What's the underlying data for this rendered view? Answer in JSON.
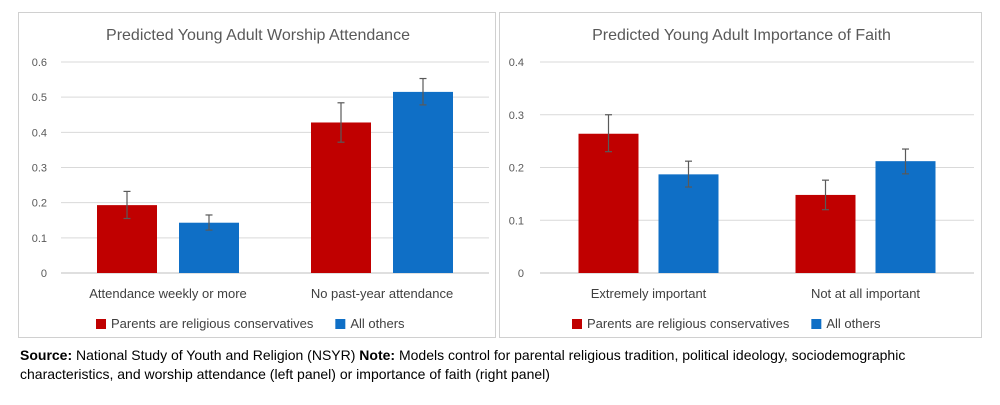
{
  "chart_data": [
    {
      "type": "bar",
      "title": "Predicted Young Adult Worship Attendance",
      "categories": [
        "Attendance weekly or more",
        "No past-year attendance"
      ],
      "series": [
        {
          "name": "Parents are religious conservatives",
          "color": "#c00000",
          "values": [
            0.193,
            0.428
          ],
          "error": [
            [
              0.155,
              0.232
            ],
            [
              0.372,
              0.484
            ]
          ]
        },
        {
          "name": "All others",
          "color": "#0f6fc6",
          "values": [
            0.143,
            0.515
          ],
          "error": [
            [
              0.122,
              0.165
            ],
            [
              0.478,
              0.553
            ]
          ]
        }
      ],
      "ylim": [
        0,
        0.6
      ],
      "yticks": [
        "0",
        "0.1",
        "0.2",
        "0.3",
        "0.4",
        "0.5",
        "0.6"
      ],
      "legend": "bottom",
      "grid": true
    },
    {
      "type": "bar",
      "title": "Predicted Young Adult Importance of Faith",
      "categories": [
        "Extremely important",
        "Not at all important"
      ],
      "series": [
        {
          "name": "Parents are religious conservatives",
          "color": "#c00000",
          "values": [
            0.264,
            0.148
          ],
          "error": [
            [
              0.23,
              0.3
            ],
            [
              0.12,
              0.176
            ]
          ]
        },
        {
          "name": "All others",
          "color": "#0f6fc6",
          "values": [
            0.187,
            0.212
          ],
          "error": [
            [
              0.163,
              0.212
            ],
            [
              0.188,
              0.235
            ]
          ]
        }
      ],
      "ylim": [
        0,
        0.4
      ],
      "yticks": [
        "0",
        "0.1",
        "0.2",
        "0.3",
        "0.4"
      ],
      "legend": "bottom",
      "grid": true
    }
  ],
  "caption": {
    "source_label": "Source:",
    "source_text": " National Study of Youth and Religion (NSYR) ",
    "note_label": "Note:",
    "note_text": " Models control for parental religious tradition, political ideology, sociodemographic characteristics, and worship attendance (left panel) or importance of faith (right panel)"
  }
}
